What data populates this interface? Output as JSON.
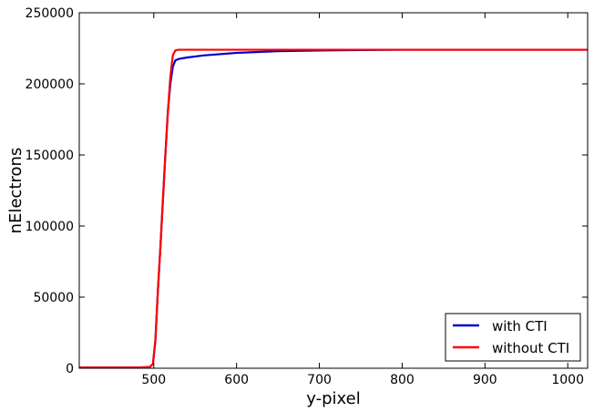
{
  "chart_data": {
    "type": "line",
    "title": "",
    "xlabel": "y-pixel",
    "ylabel": "nElectrons",
    "xlim": [
      410,
      1024
    ],
    "ylim": [
      0,
      250000
    ],
    "xticks": [
      500,
      600,
      700,
      800,
      900,
      1000
    ],
    "yticks": [
      0,
      50000,
      100000,
      150000,
      200000,
      250000
    ],
    "grid": false,
    "legend_position": "lower-right",
    "series": [
      {
        "name": "with CTI",
        "color": "#0000cc",
        "x": [
          410,
          480,
          495,
          499,
          502,
          505,
          508,
          511,
          514,
          517,
          520,
          523,
          526,
          530,
          540,
          560,
          600,
          650,
          700,
          750,
          800,
          850,
          900,
          950,
          1000,
          1024
        ],
        "y": [
          500,
          500,
          800,
          3000,
          20000,
          55000,
          85000,
          118000,
          150000,
          180000,
          200000,
          212000,
          216500,
          217500,
          218500,
          220000,
          221800,
          223000,
          223500,
          223800,
          224000,
          224000,
          224000,
          224000,
          224000,
          224000
        ]
      },
      {
        "name": "without CTI",
        "color": "#ff0000",
        "x": [
          410,
          480,
          495,
          499,
          502,
          505,
          508,
          511,
          514,
          517,
          520,
          523,
          526,
          530,
          540,
          600,
          700,
          800,
          900,
          1000,
          1024
        ],
        "y": [
          500,
          500,
          800,
          3000,
          20000,
          55000,
          85000,
          118000,
          150000,
          180000,
          205000,
          220000,
          223500,
          224000,
          224000,
          224000,
          224000,
          224000,
          224000,
          224000,
          224000
        ]
      }
    ]
  }
}
